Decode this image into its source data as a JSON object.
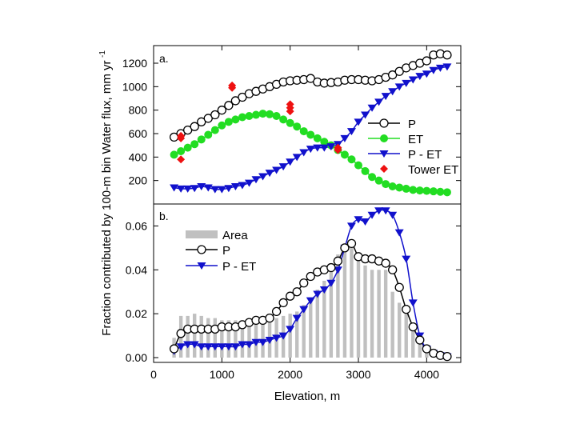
{
  "colors": {
    "p": "#000000",
    "et": "#22dd22",
    "p_minus_et": "#1111cc",
    "tower": "#ee1111",
    "area": "#c0c0c0"
  },
  "chart_data": [
    {
      "type": "line",
      "panel_label": "a.",
      "xlabel": "",
      "ylabel": "Water flux, mm yr",
      "ylabel_superscript": "-1",
      "xlim": [
        0,
        4500
      ],
      "ylim": [
        0,
        1350
      ],
      "yticks": [
        "200",
        "400",
        "600",
        "800",
        "1000",
        "1200"
      ],
      "ytick_values": [
        200,
        400,
        600,
        800,
        1000,
        1200
      ],
      "grid": false,
      "legend_position": "right",
      "x": [
        300,
        400,
        500,
        600,
        700,
        800,
        900,
        1000,
        1100,
        1200,
        1300,
        1400,
        1500,
        1600,
        1700,
        1800,
        1900,
        2000,
        2100,
        2200,
        2300,
        2400,
        2500,
        2600,
        2700,
        2800,
        2900,
        3000,
        3100,
        3200,
        3300,
        3400,
        3500,
        3600,
        3700,
        3800,
        3900,
        4000,
        4100,
        4200,
        4300
      ],
      "series": [
        {
          "name": "P",
          "marker": "open-circle",
          "values": [
            570,
            600,
            630,
            660,
            700,
            730,
            760,
            800,
            840,
            880,
            910,
            940,
            960,
            980,
            1000,
            1020,
            1040,
            1050,
            1055,
            1060,
            1070,
            1040,
            1030,
            1035,
            1040,
            1055,
            1060,
            1060,
            1055,
            1050,
            1060,
            1080,
            1100,
            1130,
            1160,
            1180,
            1200,
            1220,
            1270,
            1280,
            1270
          ]
        },
        {
          "name": "ET",
          "marker": "filled-circle",
          "values": [
            420,
            450,
            480,
            510,
            550,
            590,
            630,
            670,
            700,
            720,
            740,
            750,
            760,
            770,
            765,
            750,
            720,
            690,
            660,
            620,
            590,
            560,
            530,
            500,
            460,
            420,
            380,
            330,
            280,
            230,
            200,
            170,
            150,
            140,
            130,
            120,
            115,
            112,
            108,
            104,
            100
          ]
        },
        {
          "name": "P - ET",
          "marker": "triangle-down",
          "values": [
            140,
            130,
            130,
            135,
            150,
            140,
            125,
            125,
            135,
            150,
            160,
            180,
            210,
            235,
            265,
            290,
            320,
            360,
            400,
            440,
            470,
            480,
            480,
            490,
            510,
            560,
            620,
            700,
            760,
            820,
            870,
            920,
            960,
            1000,
            1030,
            1060,
            1090,
            1110,
            1140,
            1160,
            1170
          ]
        },
        {
          "name": "Tower ET",
          "marker": "diamond",
          "type": "scatter",
          "points": [
            [
              400,
              580
            ],
            [
              400,
              560
            ],
            [
              400,
              380
            ],
            [
              1150,
              1010
            ],
            [
              1150,
              990
            ],
            [
              2000,
              850
            ],
            [
              2000,
              820
            ],
            [
              2000,
              790
            ],
            [
              2700,
              480
            ],
            [
              2700,
              460
            ]
          ]
        }
      ]
    },
    {
      "type": "bar+line",
      "panel_label": "b.",
      "xlabel": "Elevation, m",
      "ylabel": "Fraction contributed by 100-m bin",
      "xlim": [
        0,
        4500
      ],
      "ylim": [
        0,
        0.07
      ],
      "xticks": [
        "0",
        "1000",
        "2000",
        "3000",
        "4000"
      ],
      "xtick_values": [
        0,
        1000,
        2000,
        3000,
        4000
      ],
      "yticks": [
        "0.00",
        "0.02",
        "0.04",
        "0.06"
      ],
      "ytick_values": [
        0,
        0.02,
        0.04,
        0.06
      ],
      "grid": false,
      "legend_position": "top-left",
      "x": [
        300,
        400,
        500,
        600,
        700,
        800,
        900,
        1000,
        1100,
        1200,
        1300,
        1400,
        1500,
        1600,
        1700,
        1800,
        1900,
        2000,
        2100,
        2200,
        2300,
        2400,
        2500,
        2600,
        2700,
        2800,
        2900,
        3000,
        3100,
        3200,
        3300,
        3400,
        3500,
        3600,
        3700,
        3800,
        3900,
        4000,
        4100,
        4200,
        4300
      ],
      "series": [
        {
          "name": "Area",
          "type": "bar",
          "values": [
            0.009,
            0.019,
            0.019,
            0.02,
            0.019,
            0.018,
            0.018,
            0.017,
            0.017,
            0.017,
            0.017,
            0.017,
            0.017,
            0.017,
            0.018,
            0.018,
            0.019,
            0.02,
            0.021,
            0.024,
            0.027,
            0.031,
            0.035,
            0.04,
            0.047,
            0.052,
            0.05,
            0.044,
            0.042,
            0.04,
            0.04,
            0.04,
            0.03,
            0.025,
            0.02,
            0.015,
            0.008,
            0.004,
            0.002,
            0.001,
            0.0005
          ]
        },
        {
          "name": "P",
          "marker": "open-circle",
          "values": [
            0.004,
            0.011,
            0.013,
            0.013,
            0.013,
            0.013,
            0.013,
            0.014,
            0.014,
            0.014,
            0.015,
            0.016,
            0.017,
            0.017,
            0.018,
            0.021,
            0.025,
            0.028,
            0.03,
            0.034,
            0.037,
            0.039,
            0.04,
            0.041,
            0.044,
            0.05,
            0.052,
            0.046,
            0.045,
            0.045,
            0.044,
            0.043,
            0.04,
            0.032,
            0.022,
            0.014,
            0.008,
            0.004,
            0.002,
            0.001,
            0.0005
          ]
        },
        {
          "name": "P - ET",
          "marker": "triangle-down",
          "values": [
            0.003,
            0.005,
            0.006,
            0.006,
            0.005,
            0.005,
            0.005,
            0.005,
            0.005,
            0.005,
            0.006,
            0.006,
            0.007,
            0.007,
            0.008,
            0.009,
            0.01,
            0.013,
            0.018,
            0.022,
            0.026,
            0.029,
            0.031,
            0.034,
            0.04,
            0.05,
            0.06,
            0.063,
            0.062,
            0.065,
            0.067,
            0.067,
            0.065,
            0.057,
            0.045,
            0.025,
            0.01,
            0.004,
            0.002,
            0.001,
            0.0005
          ]
        }
      ]
    }
  ]
}
